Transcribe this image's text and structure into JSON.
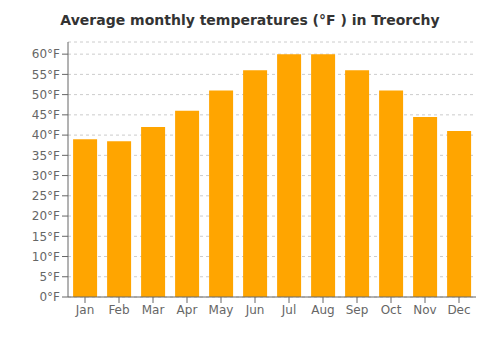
{
  "chart_data": {
    "type": "bar",
    "title": "Average monthly temperatures (°F ) in Treorchy",
    "categories": [
      "Jan",
      "Feb",
      "Mar",
      "Apr",
      "May",
      "Jun",
      "Jul",
      "Aug",
      "Sep",
      "Oct",
      "Nov",
      "Dec"
    ],
    "values": [
      39,
      38.5,
      42,
      46,
      51,
      56,
      60,
      60,
      56,
      51,
      44.5,
      41
    ],
    "color": "#FFA500",
    "ylim": [
      0,
      63
    ],
    "yticks": [
      {
        "value": 0,
        "label": "0°F"
      },
      {
        "value": 5,
        "label": "5°F"
      },
      {
        "value": 10,
        "label": "10°F"
      },
      {
        "value": 15,
        "label": "15°F"
      },
      {
        "value": 20,
        "label": "20°F"
      },
      {
        "value": 25,
        "label": "25°F"
      },
      {
        "value": 30,
        "label": "30°F"
      },
      {
        "value": 35,
        "label": "35°F"
      },
      {
        "value": 40,
        "label": "40°F"
      },
      {
        "value": 45,
        "label": "45°F"
      },
      {
        "value": 50,
        "label": "50°F"
      },
      {
        "value": 55,
        "label": "55°F"
      },
      {
        "value": 60,
        "label": "60°F"
      }
    ],
    "grid": true
  }
}
